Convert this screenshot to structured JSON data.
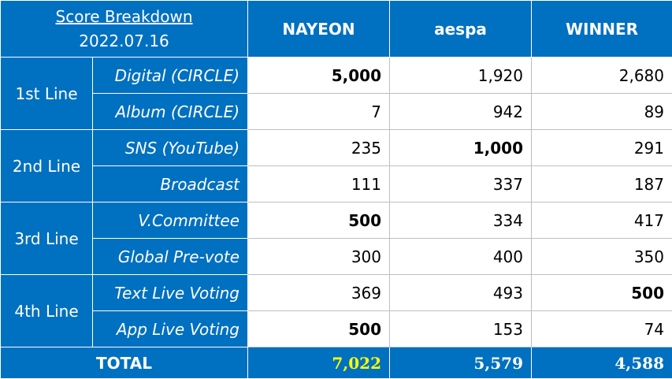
{
  "header": {
    "title": "Score Breakdown",
    "date": "2022.07.16",
    "artists": [
      "NAYEON",
      "aespa",
      "WINNER"
    ]
  },
  "groups": [
    {
      "label": "1st Line",
      "rows": [
        {
          "category": "Digital (CIRCLE)",
          "values": [
            "5,000",
            "1,920",
            "2,680"
          ]
        },
        {
          "category": "Album (CIRCLE)",
          "values": [
            "7",
            "942",
            "89"
          ]
        }
      ]
    },
    {
      "label": "2nd Line",
      "rows": [
        {
          "category": "SNS (YouTube)",
          "values": [
            "235",
            "1,000",
            "291"
          ]
        },
        {
          "category": "Broadcast",
          "values": [
            "111",
            "337",
            "187"
          ]
        }
      ]
    },
    {
      "label": "3rd Line",
      "rows": [
        {
          "category": "V.Committee",
          "values": [
            "500",
            "334",
            "417"
          ]
        },
        {
          "category": "Global Pre-vote",
          "values": [
            "300",
            "400",
            "350"
          ]
        }
      ]
    },
    {
      "label": "4th Line",
      "rows": [
        {
          "category": "Text Live Voting",
          "values": [
            "369",
            "493",
            "500"
          ]
        },
        {
          "category": "App Live Voting",
          "values": [
            "500",
            "153",
            "74"
          ]
        }
      ]
    }
  ],
  "total": {
    "label": "TOTAL",
    "values": [
      "7,022",
      "5,579",
      "4,588"
    ],
    "highlight_color": "#ffff00"
  },
  "colors": {
    "header_blue": "#0070c0"
  }
}
